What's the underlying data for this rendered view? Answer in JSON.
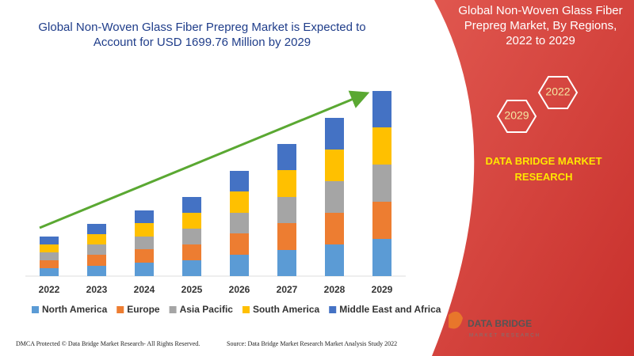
{
  "chart_data": {
    "type": "bar",
    "stacked": true,
    "title": "Global Non-Woven Glass Fiber Prepreg Market is Expected to Account for USD 1699.76 Million by 2029",
    "categories": [
      "2022",
      "2023",
      "2024",
      "2025",
      "2026",
      "2027",
      "2028",
      "2029"
    ],
    "series": [
      {
        "name": "North America",
        "color": "#5b9bd5",
        "values": [
          10,
          13,
          17,
          20,
          27,
          33,
          40,
          47
        ]
      },
      {
        "name": "Europe",
        "color": "#ed7d31",
        "values": [
          10,
          14,
          17,
          20,
          27,
          34,
          40,
          47
        ]
      },
      {
        "name": "Asia Pacific",
        "color": "#a5a5a5",
        "values": [
          10,
          13,
          16,
          20,
          26,
          33,
          40,
          47
        ]
      },
      {
        "name": "South America",
        "color": "#ffc000",
        "values": [
          10,
          13,
          17,
          20,
          27,
          34,
          40,
          47
        ]
      },
      {
        "name": "Middle East and Africa",
        "color": "#4472c4",
        "values": [
          10,
          13,
          16,
          20,
          26,
          33,
          40,
          46
        ]
      }
    ]
  },
  "panel": {
    "title": "Global Non-Woven Glass Fiber Prepreg Market, By Regions, 2022 to 2029",
    "hex_start": "2029",
    "hex_end": "2022",
    "brand": "DATA BRIDGE MARKET RESEARCH"
  },
  "logo": {
    "name": "DATA BRIDGE",
    "tagline": "MARKET RESEARCH"
  },
  "footer": {
    "copyright": "DMCA Protected © Data Bridge Market Research- All Rights Reserved.",
    "source": "Source: Data Bridge Market Research Market Analysis Study 2022"
  }
}
